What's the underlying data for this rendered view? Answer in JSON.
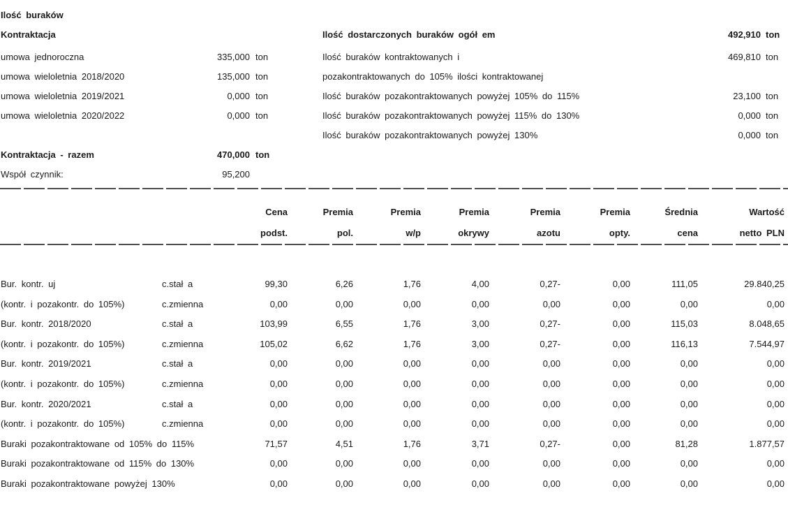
{
  "page": {
    "title": "Ilość buraków"
  },
  "contracting": {
    "heading": "Kontraktacja",
    "rows": [
      {
        "label": "umowa jednoroczna",
        "value": "335,000",
        "unit": "ton"
      },
      {
        "label": "umowa wieloletnia 2018/2020",
        "value": "135,000",
        "unit": "ton"
      },
      {
        "label": "umowa wieloletnia 2019/2021",
        "value": "0,000",
        "unit": "ton"
      },
      {
        "label": "umowa wieloletnia 2020/2022",
        "value": "0,000",
        "unit": "ton"
      }
    ],
    "total": {
      "label": "Kontraktacja - razem",
      "value": "470,000",
      "unit": "ton"
    },
    "coefficient": {
      "label": "Współ czynnik:",
      "value": "95,200",
      "unit": ""
    }
  },
  "delivered": {
    "heading": {
      "label": "Ilość dostarczonych buraków ogół em",
      "value": "492,910",
      "unit": "ton"
    },
    "rows": [
      {
        "label": "Ilość buraków kontraktowanych i",
        "value": "469,810",
        "unit": "ton"
      },
      {
        "label": "pozakontraktowanych do 105% ilości kontraktowanej",
        "value": "",
        "unit": ""
      },
      {
        "label": "Ilość buraków pozakontraktowanych powyżej 105% do 115%",
        "value": "23,100",
        "unit": "ton"
      },
      {
        "label": "Ilość buraków pozakontraktowanych powyżej 115% do 130%",
        "value": "0,000",
        "unit": "ton"
      },
      {
        "label": "Ilość buraków pozakontraktowanych powyżej 130%",
        "value": "0,000",
        "unit": "ton"
      }
    ]
  },
  "price_table": {
    "headers": [
      {
        "line1": "Cena",
        "line2": "podst."
      },
      {
        "line1": "Premia",
        "line2": "pol."
      },
      {
        "line1": "Premia",
        "line2": "w/p"
      },
      {
        "line1": "Premia",
        "line2": "okrywy"
      },
      {
        "line1": "Premia",
        "line2": "azotu"
      },
      {
        "line1": "Premia",
        "line2": "opty."
      },
      {
        "line1": "Średnia",
        "line2": "cena"
      },
      {
        "line1": "Wartość",
        "line2": "netto PLN"
      }
    ],
    "rows": [
      {
        "label": "Bur. kontr. uj",
        "type": "c.stał a",
        "values": [
          "99,30",
          "6,26",
          "1,76",
          "4,00",
          "0,27-",
          "0,00",
          "111,05",
          "29.840,25"
        ]
      },
      {
        "label": "(kontr. i pozakontr. do 105%)",
        "type": "c.zmienna",
        "values": [
          "0,00",
          "0,00",
          "0,00",
          "0,00",
          "0,00",
          "0,00",
          "0,00",
          "0,00"
        ]
      },
      {
        "label": "Bur. kontr. 2018/2020",
        "type": "c.stał a",
        "values": [
          "103,99",
          "6,55",
          "1,76",
          "3,00",
          "0,27-",
          "0,00",
          "115,03",
          "8.048,65"
        ]
      },
      {
        "label": "(kontr. i pozakontr. do 105%)",
        "type": "c.zmienna",
        "values": [
          "105,02",
          "6,62",
          "1,76",
          "3,00",
          "0,27-",
          "0,00",
          "116,13",
          "7.544,97"
        ]
      },
      {
        "label": "Bur. kontr. 2019/2021",
        "type": "c.stał a",
        "values": [
          "0,00",
          "0,00",
          "0,00",
          "0,00",
          "0,00",
          "0,00",
          "0,00",
          "0,00"
        ]
      },
      {
        "label": "(kontr. i pozakontr. do 105%)",
        "type": "c.zmienna",
        "values": [
          "0,00",
          "0,00",
          "0,00",
          "0,00",
          "0,00",
          "0,00",
          "0,00",
          "0,00"
        ]
      },
      {
        "label": "Bur. kontr. 2020/2021",
        "type": "c.stał a",
        "values": [
          "0,00",
          "0,00",
          "0,00",
          "0,00",
          "0,00",
          "0,00",
          "0,00",
          "0,00"
        ]
      },
      {
        "label": "(kontr. i pozakontr. do 105%)",
        "type": "c.zmienna",
        "values": [
          "0,00",
          "0,00",
          "0,00",
          "0,00",
          "0,00",
          "0,00",
          "0,00",
          "0,00"
        ]
      },
      {
        "label": "Buraki pozakontraktowane od 105% do 115%",
        "type": "",
        "values": [
          "71,57",
          "4,51",
          "1,76",
          "3,71",
          "0,27-",
          "0,00",
          "81,28",
          "1.877,57"
        ]
      },
      {
        "label": "Buraki pozakontraktowane od 115% do 130%",
        "type": "",
        "values": [
          "0,00",
          "0,00",
          "0,00",
          "0,00",
          "0,00",
          "0,00",
          "0,00",
          "0,00"
        ]
      },
      {
        "label": "Buraki pozakontraktowane powyżej 130%",
        "type": "",
        "values": [
          "0,00",
          "0,00",
          "0,00",
          "0,00",
          "0,00",
          "0,00",
          "0,00",
          "0,00"
        ]
      }
    ]
  }
}
